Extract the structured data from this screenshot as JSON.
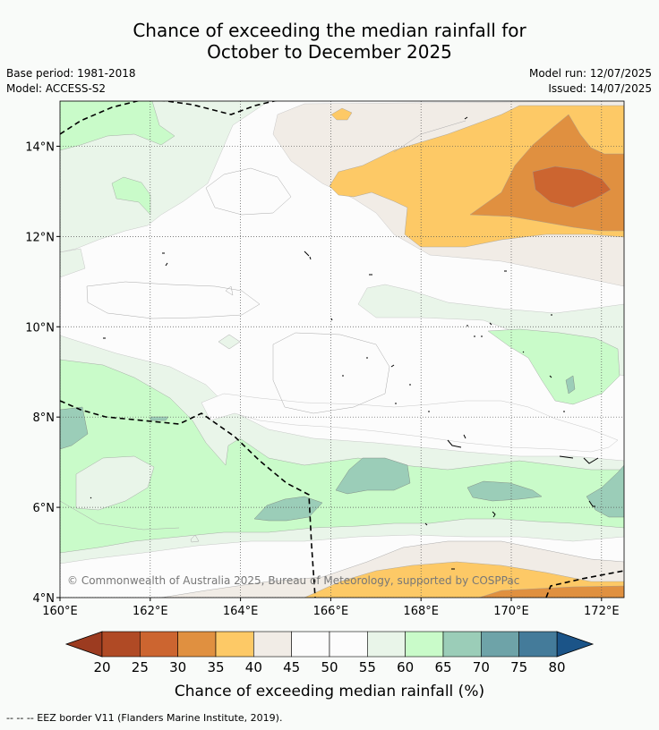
{
  "title_line1": "Chance of exceeding the median rainfall for",
  "title_line2": "October to December 2025",
  "base_period": "Base period: 1981-2018",
  "model": "Model: ACCESS-S2",
  "model_run": "Model run: 12/07/2025",
  "issued": "Issued: 14/07/2025",
  "copyright": "© Commonwealth of Australia 2025, Bureau of Meteorology, supported by COSPPac",
  "footer": "--  --  -- EEZ border V11 (Flanders Marine Institute, 2019).",
  "map": {
    "lon_ticks": [
      "160°E",
      "162°E",
      "164°E",
      "166°E",
      "168°E",
      "170°E",
      "172°E"
    ],
    "lat_ticks": [
      "4°N",
      "6°N",
      "8°N",
      "10°N",
      "12°N",
      "14°N"
    ],
    "lon_values": [
      160,
      162,
      164,
      166,
      168,
      170,
      172
    ],
    "lat_values": [
      4,
      6,
      8,
      10,
      12,
      14
    ],
    "lon_range": [
      160,
      172.5
    ],
    "lat_range": [
      4,
      15
    ]
  },
  "colorbar": {
    "label": "Chance of exceeding median rainfall (%)",
    "ticks": [
      "20",
      "25",
      "30",
      "35",
      "40",
      "45",
      "50",
      "55",
      "60",
      "65",
      "70",
      "75",
      "80"
    ],
    "colors": [
      "#b04a25",
      "#cc6530",
      "#e09040",
      "#fdc966",
      "#f1ece6",
      "#fcfcfc",
      "#fcfcfc",
      "#e9f5e9",
      "#c9fbc9",
      "#9bcdb8",
      "#6ea3a8",
      "#447b9a"
    ],
    "under_color": "#9c3b20",
    "over_color": "#1b5488"
  },
  "colors": {
    "c20": "#b04a25",
    "c25": "#cc6530",
    "c30": "#e09040",
    "c35": "#fdc966",
    "c40": "#f1ece6",
    "c50": "#fcfcfc",
    "c55": "#e9f5e9",
    "c60": "#c9fbc9",
    "c65": "#9bcdb8"
  }
}
